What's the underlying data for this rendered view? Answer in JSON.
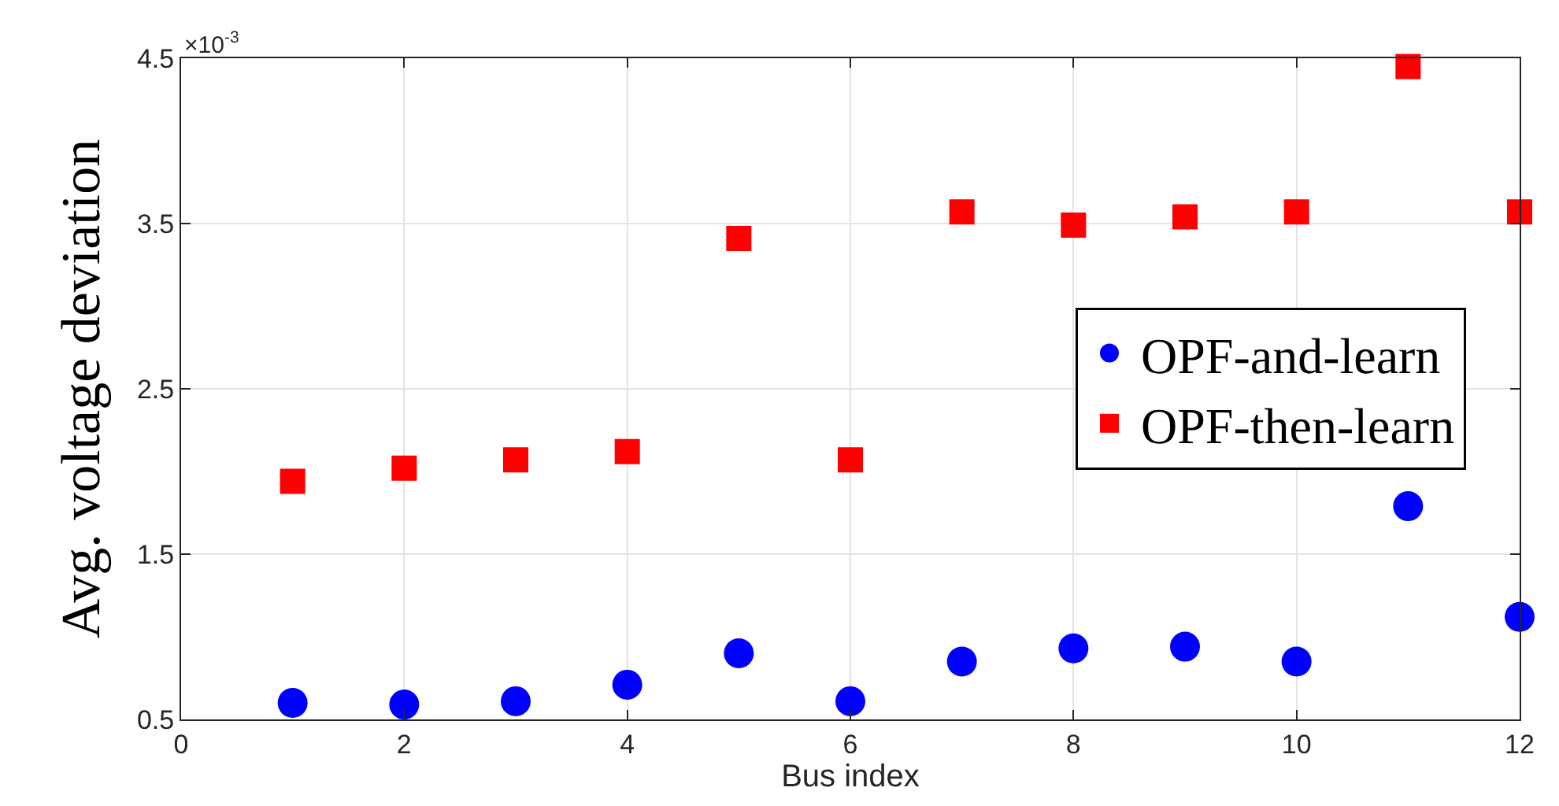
{
  "chart_data": {
    "type": "scatter",
    "xlabel": "Bus index",
    "ylabel": "Avg. voltage deviation",
    "x": [
      1,
      2,
      3,
      4,
      5,
      6,
      7,
      8,
      9,
      10,
      11,
      12
    ],
    "series": [
      {
        "name": "OPF-and-learn",
        "color": "#0000ff",
        "marker": "circle",
        "values": [
          0.6,
          0.59,
          0.61,
          0.71,
          0.9,
          0.61,
          0.85,
          0.93,
          0.94,
          0.85,
          1.79,
          1.12
        ]
      },
      {
        "name": "OPF-then-learn",
        "color": "#ff0000",
        "marker": "square",
        "values": [
          1.94,
          2.02,
          2.07,
          2.12,
          3.41,
          2.07,
          3.57,
          3.49,
          3.54,
          3.57,
          4.45,
          3.57
        ]
      }
    ],
    "xlim": [
      0,
      12
    ],
    "xticks": [
      0,
      2,
      4,
      6,
      8,
      10,
      12
    ],
    "ylim": [
      0.5,
      4.5
    ],
    "yticks": [
      0.5,
      1.5,
      2.5,
      3.5,
      4.5
    ],
    "annotations": [
      "×10$^{-3}$"
    ],
    "grid": true,
    "legend": "right"
  }
}
